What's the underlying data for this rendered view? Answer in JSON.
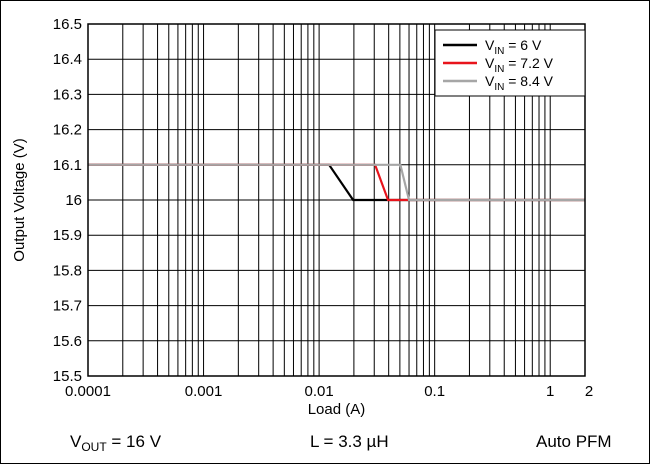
{
  "chart_data": {
    "type": "line",
    "xlabel": "Load (A)",
    "ylabel": "Output Voltage (V)",
    "xscale": "log",
    "xlim": [
      0.0001,
      2
    ],
    "ylim": [
      15.5,
      16.5
    ],
    "x_ticks": [
      0.0001,
      0.001,
      0.01,
      0.1,
      1,
      2
    ],
    "x_tick_labels": [
      "0.0001",
      "0.001",
      "0.01",
      "0.1",
      "1",
      "2"
    ],
    "y_ticks": [
      15.5,
      15.6,
      15.7,
      15.8,
      15.9,
      16,
      16.1,
      16.2,
      16.3,
      16.4,
      16.5
    ],
    "y_tick_labels": [
      "15.5",
      "15.6",
      "15.7",
      "15.8",
      "15.9",
      "16",
      "16.1",
      "16.2",
      "16.3",
      "16.4",
      "16.5"
    ],
    "grid": true,
    "legend_position": "top-right",
    "series": [
      {
        "name_main": "V",
        "name_sub": "IN",
        "name_rest": " = 6 V",
        "color": "#000000",
        "x": [
          0.0001,
          0.0122,
          0.0197,
          2
        ],
        "y": [
          16.1,
          16.1,
          16.0,
          16.0
        ]
      },
      {
        "name_main": "V",
        "name_sub": "IN",
        "name_rest": " = 7.2 V",
        "color": "#e8141c",
        "x": [
          0.0001,
          0.0305,
          0.0395,
          2
        ],
        "y": [
          16.1,
          16.1,
          16.0,
          16.0
        ]
      },
      {
        "name_main": "V",
        "name_sub": "IN",
        "name_rest": " = 8.4 V",
        "color": "#a6a6a6",
        "x": [
          0.0001,
          0.0505,
          0.06,
          2
        ],
        "y": [
          16.1,
          16.1,
          16.0,
          16.0
        ]
      }
    ],
    "figure_code": "D006"
  },
  "captions": {
    "vout_main": "V",
    "vout_sub": "OUT",
    "vout_rest": " = 16 V",
    "inductance": "L = 3.3 µH",
    "mode": "Auto PFM"
  }
}
